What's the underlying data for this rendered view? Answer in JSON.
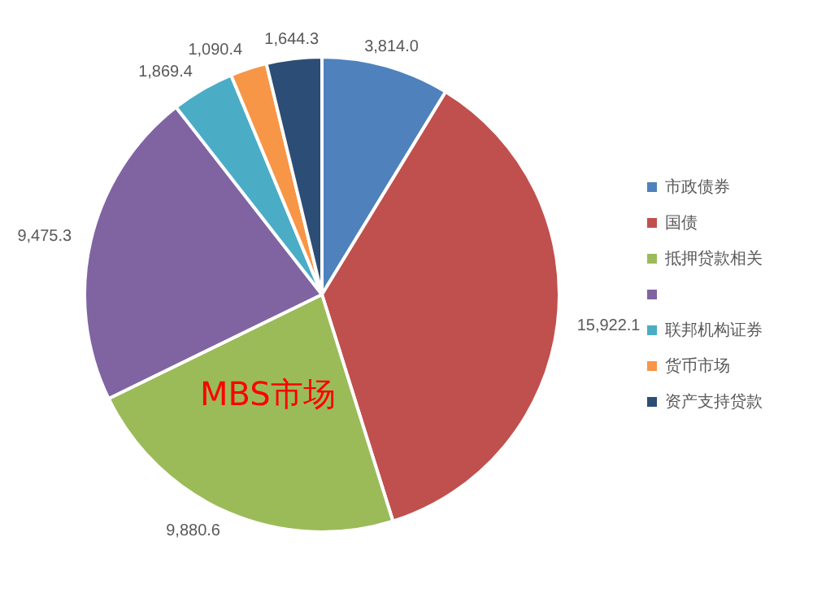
{
  "chart_data": {
    "type": "pie",
    "categories": [
      "市政债券",
      "国债",
      "抵押贷款相关",
      null,
      "联邦机构证券",
      "货币市场",
      "资产支持贷款"
    ],
    "values": [
      3814.0,
      15922.1,
      9880.6,
      9475.3,
      1869.4,
      1090.4,
      1644.3
    ],
    "colors": [
      "#4f81bd",
      "#c0504d",
      "#9bbb59",
      "#8064a2",
      "#4bacc6",
      "#f79646",
      "#2c4d75"
    ],
    "value_labels": [
      "3,814.0",
      "15,922.1",
      "9,880.6",
      "9,475.3",
      "1,869.4",
      "1,090.4",
      "1,644.3"
    ],
    "legend": "right",
    "annotations": [
      "MBS市场"
    ]
  }
}
